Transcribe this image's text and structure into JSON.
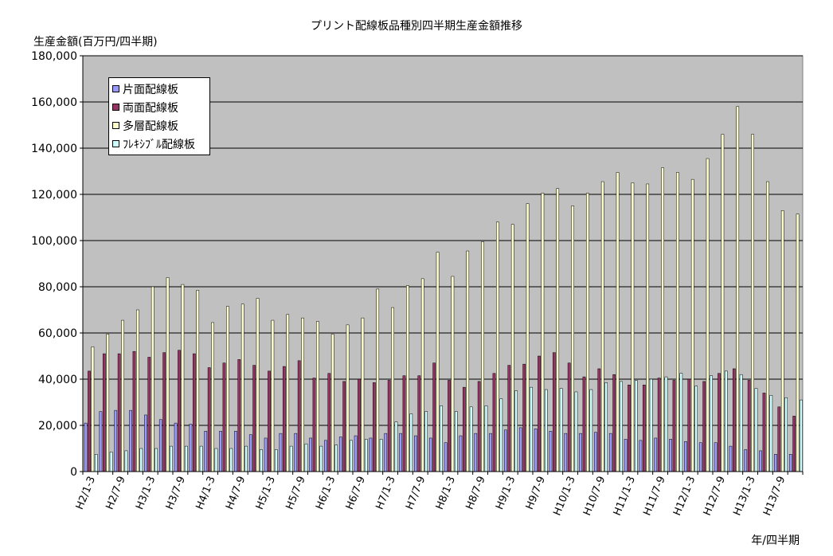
{
  "chart_data": {
    "type": "bar",
    "title": "プリント配線板品種別四半期生産金額推移",
    "ylabel": "生産金額(百万円/四半期)",
    "xlabel": "年/四半期",
    "ylim": [
      0,
      180000
    ],
    "yticks": [
      "0",
      "20,000",
      "40,000",
      "60,000",
      "80,000",
      "100,000",
      "120,000",
      "140,000",
      "160,000",
      "180,000"
    ],
    "grid": true,
    "legend_position": "top-left",
    "categories": [
      "H2/1-3",
      "H2/4-6",
      "H2/7-9",
      "H2/10-12",
      "H3/1-3",
      "H3/4-6",
      "H3/7-9",
      "H3/10-12",
      "H4/1-3",
      "H4/4-6",
      "H4/7-9",
      "H4/10-12",
      "H5/1-3",
      "H5/4-6",
      "H5/7-9",
      "H5/10-12",
      "H6/1-3",
      "H6/4-6",
      "H6/7-9",
      "H6/10-12",
      "H7/1-3",
      "H7/4-6",
      "H7/7-9",
      "H7/10-12",
      "H8/1-3",
      "H8/4-6",
      "H8/7-9",
      "H8/10-12",
      "H9/1-3",
      "H9/4-6",
      "H9/7-9",
      "H9/10-12",
      "H10/1-3",
      "H10/4-6",
      "H10/7-9",
      "H10/10-12",
      "H11/1-3",
      "H11/4-6",
      "H11/7-9",
      "H11/10-12",
      "H12/1-3",
      "H12/4-6",
      "H12/7-9",
      "H12/10-12",
      "H13/1-3",
      "H13/4-6",
      "H13/7-9",
      "H13/10-12"
    ],
    "shown_tick_labels": [
      "H2/1-3",
      "H2/7-9",
      "H3/1-3",
      "H3/7-9",
      "H4/1-3",
      "H4/7-9",
      "H5/1-3",
      "H5/7-9",
      "H6/1-3",
      "H6/7-9",
      "H7/1-3",
      "H7/7-9",
      "H8/1-3",
      "H8/7-9",
      "H9/1-3",
      "H9/7-9",
      "H10/1-3",
      "H10/7-9",
      "H11/1-3",
      "H11/7-9",
      "H12/1-3",
      "H12/7-9",
      "H13/1-3",
      "H13/7-9"
    ],
    "series": [
      {
        "name": "片面配線板",
        "color": "#9999ff",
        "values": [
          21000,
          26000,
          26500,
          26500,
          24500,
          22500,
          21000,
          20500,
          17500,
          17500,
          17500,
          16000,
          14500,
          16500,
          16500,
          14500,
          13500,
          15000,
          15500,
          14500,
          16500,
          16500,
          15500,
          14500,
          12500,
          15500,
          16500,
          16500,
          18000,
          19000,
          18500,
          17500,
          16500,
          16500,
          17000,
          16500,
          14000,
          13500,
          14500,
          14000,
          13000,
          12500,
          12500,
          11000,
          9500,
          9000,
          7500,
          7500
        ]
      },
      {
        "name": "両面配線板",
        "color": "#993366",
        "values": [
          43500,
          51000,
          51000,
          52000,
          49500,
          51500,
          52500,
          51000,
          45000,
          47000,
          48500,
          46000,
          43500,
          45500,
          48000,
          40500,
          42500,
          39000,
          40000,
          38500,
          39500,
          41500,
          41500,
          47000,
          39500,
          36500,
          39000,
          42500,
          46000,
          46500,
          50000,
          51500,
          47000,
          41000,
          44500,
          42000,
          37500,
          37500,
          40500,
          39500,
          40000,
          39000,
          42500,
          44500,
          39500,
          34000,
          28000,
          24000
        ]
      },
      {
        "name": "多層配線板",
        "color": "#ffffcc",
        "values": [
          54000,
          59500,
          65500,
          70000,
          80000,
          84000,
          81000,
          78500,
          64500,
          71500,
          72500,
          75000,
          65500,
          68000,
          66500,
          65000,
          59500,
          63500,
          66500,
          79000,
          71000,
          80500,
          83500,
          95000,
          84500,
          95500,
          99500,
          108000,
          107000,
          116000,
          120500,
          122500,
          115000,
          120500,
          125500,
          129500,
          125000,
          124500,
          131500,
          129500,
          126500,
          135500,
          146000,
          158000,
          146000,
          125500,
          113000,
          111500
        ]
      },
      {
        "name": "ﾌﾚｷｼﾌﾞﾙ配線板",
        "color": "#ccffff",
        "values": [
          7500,
          8500,
          9000,
          10000,
          10000,
          11000,
          11000,
          11000,
          10000,
          10000,
          11000,
          9500,
          9500,
          11000,
          12000,
          11000,
          11500,
          13500,
          14000,
          14000,
          21500,
          25000,
          26000,
          28500,
          26000,
          28000,
          28500,
          31500,
          35000,
          36500,
          35500,
          36000,
          34500,
          35500,
          38500,
          39000,
          39500,
          40000,
          41000,
          42500,
          37000,
          41500,
          43500,
          42000,
          36000,
          33000,
          32000,
          31000
        ]
      }
    ]
  }
}
